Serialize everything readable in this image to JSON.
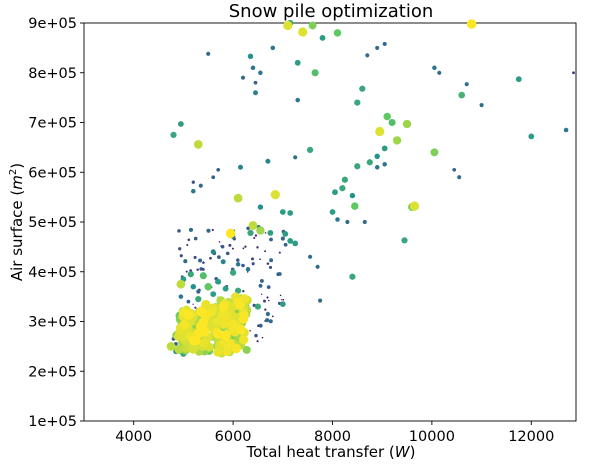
{
  "chart_data": {
    "type": "scatter",
    "title": "Snow pile optimization",
    "xlabel": "Total heat transfer",
    "xlabel_unit": "W",
    "ylabel": "Air surface",
    "ylabel_unit": "m",
    "ylabel_unit_sup": "2",
    "xlim": [
      3000,
      12900
    ],
    "ylim": [
      100000,
      900000
    ],
    "x_ticks": [
      {
        "value": 4000,
        "label": "4000"
      },
      {
        "value": 6000,
        "label": "6000"
      },
      {
        "value": 8000,
        "label": "8000"
      },
      {
        "value": 10000,
        "label": "10000"
      },
      {
        "value": 12000,
        "label": "12000"
      }
    ],
    "y_ticks": [
      {
        "value": 100000,
        "label": "1e+05"
      },
      {
        "value": 200000,
        "label": "2e+05"
      },
      {
        "value": 300000,
        "label": "3e+05"
      },
      {
        "value": 400000,
        "label": "4e+05"
      },
      {
        "value": 500000,
        "label": "5e+05"
      },
      {
        "value": 600000,
        "label": "6e+05"
      },
      {
        "value": 700000,
        "label": "7e+05"
      },
      {
        "value": 800000,
        "label": "8e+05"
      },
      {
        "value": 900000,
        "label": "9e+05"
      }
    ],
    "grid": false,
    "colormap": "viridis",
    "color_stops": [
      "#440154",
      "#3b528b",
      "#21918c",
      "#5ec962",
      "#fde725"
    ],
    "notes": "Each point: [x, y, c] where c in 0..1 sets both colour (viridis) and marker size.",
    "points": [
      [
        7100,
        895000,
        0.95
      ],
      [
        7400,
        882000,
        0.95
      ],
      [
        7600,
        895000,
        0.8
      ],
      [
        7800,
        870000,
        0.55
      ],
      [
        8100,
        880000,
        0.75
      ],
      [
        10800,
        898000,
        1.0
      ],
      [
        7150,
        900000,
        0.6
      ],
      [
        6800,
        850000,
        0.4
      ],
      [
        6350,
        833000,
        0.5
      ],
      [
        5500,
        838000,
        0.35
      ],
      [
        6400,
        810000,
        0.4
      ],
      [
        6550,
        800000,
        0.4
      ],
      [
        6200,
        790000,
        0.35
      ],
      [
        6450,
        780000,
        0.3
      ],
      [
        7650,
        800000,
        0.7
      ],
      [
        7300,
        820000,
        0.55
      ],
      [
        6450,
        760000,
        0.45
      ],
      [
        8900,
        850000,
        0.35
      ],
      [
        9050,
        858000,
        0.35
      ],
      [
        8700,
        835000,
        0.35
      ],
      [
        10050,
        810000,
        0.4
      ],
      [
        10150,
        800000,
        0.35
      ],
      [
        10700,
        777000,
        0.35
      ],
      [
        11750,
        787000,
        0.55
      ],
      [
        12850,
        800000,
        0.2
      ],
      [
        11000,
        735000,
        0.35
      ],
      [
        10600,
        755000,
        0.65
      ],
      [
        7300,
        745000,
        0.4
      ],
      [
        4800,
        675000,
        0.6
      ],
      [
        4950,
        697000,
        0.55
      ],
      [
        5300,
        656000,
        0.9
      ],
      [
        8500,
        740000,
        0.6
      ],
      [
        8600,
        768000,
        0.6
      ],
      [
        9100,
        712000,
        0.75
      ],
      [
        9200,
        700000,
        0.7
      ],
      [
        9500,
        697000,
        0.85
      ],
      [
        8950,
        682000,
        0.95
      ],
      [
        9300,
        664000,
        0.85
      ],
      [
        9050,
        648000,
        0.55
      ],
      [
        8900,
        632000,
        0.5
      ],
      [
        8500,
        612000,
        0.6
      ],
      [
        8750,
        620000,
        0.6
      ],
      [
        7550,
        645000,
        0.6
      ],
      [
        7250,
        630000,
        0.35
      ],
      [
        6700,
        622000,
        0.45
      ],
      [
        6150,
        610000,
        0.45
      ],
      [
        5600,
        590000,
        0.3
      ],
      [
        5700,
        605000,
        0.3
      ],
      [
        5200,
        580000,
        0.25
      ],
      [
        5350,
        573000,
        0.35
      ],
      [
        5200,
        562000,
        0.4
      ],
      [
        8250,
        585000,
        0.6
      ],
      [
        8200,
        568000,
        0.6
      ],
      [
        8050,
        560000,
        0.55
      ],
      [
        8400,
        553000,
        0.5
      ],
      [
        8900,
        610000,
        0.4
      ],
      [
        9050,
        616000,
        0.4
      ],
      [
        10050,
        640000,
        0.8
      ],
      [
        10450,
        605000,
        0.3
      ],
      [
        10550,
        590000,
        0.35
      ],
      [
        12000,
        672000,
        0.55
      ],
      [
        12700,
        685000,
        0.4
      ],
      [
        6850,
        555000,
        0.95
      ],
      [
        6100,
        548000,
        0.9
      ],
      [
        6550,
        530000,
        0.5
      ],
      [
        7000,
        520000,
        0.55
      ],
      [
        7150,
        518000,
        0.55
      ],
      [
        8000,
        520000,
        0.55
      ],
      [
        8450,
        532000,
        0.75
      ],
      [
        9600,
        530000,
        0.8
      ],
      [
        9650,
        532000,
        0.95
      ],
      [
        8300,
        500000,
        0.35
      ],
      [
        8650,
        500000,
        0.35
      ],
      [
        8100,
        505000,
        0.4
      ],
      [
        6400,
        493000,
        0.9
      ],
      [
        6550,
        483000,
        0.85
      ],
      [
        6350,
        478000,
        0.6
      ],
      [
        5950,
        477000,
        1.0
      ],
      [
        6000,
        470000,
        0.4
      ],
      [
        6750,
        478000,
        0.55
      ],
      [
        7150,
        462000,
        0.55
      ],
      [
        7050,
        476000,
        0.55
      ],
      [
        7250,
        457000,
        0.55
      ],
      [
        9450,
        463000,
        0.6
      ],
      [
        7550,
        430000,
        0.35
      ],
      [
        7700,
        410000,
        0.35
      ],
      [
        8400,
        390000,
        0.6
      ],
      [
        7750,
        342000,
        0.35
      ],
      [
        7000,
        335000,
        0.55
      ],
      [
        5600,
        440000,
        0.45
      ],
      [
        5800,
        420000,
        0.45
      ],
      [
        6100,
        415000,
        0.4
      ],
      [
        6300,
        405000,
        0.4
      ],
      [
        6000,
        398000,
        0.6
      ],
      [
        5000,
        385000,
        0.55
      ],
      [
        5150,
        395000,
        0.6
      ],
      [
        5400,
        392000,
        0.7
      ],
      [
        4950,
        375000,
        0.9
      ],
      [
        5700,
        380000,
        0.55
      ],
      [
        5500,
        370000,
        0.75
      ],
      [
        6100,
        362000,
        0.6
      ],
      [
        5850,
        366000,
        0.55
      ],
      [
        6300,
        343000,
        0.55
      ],
      [
        6500,
        330000,
        0.6
      ],
      [
        6700,
        315000,
        0.35
      ],
      [
        6000,
        330000,
        0.95
      ],
      [
        6200,
        318000,
        0.6
      ],
      [
        5850,
        305000,
        0.95
      ],
      [
        5000,
        320000,
        0.5
      ],
      [
        5100,
        340000,
        0.3
      ],
      [
        5300,
        345000,
        0.6
      ],
      [
        5600,
        355000,
        0.55
      ],
      [
        5200,
        310000,
        0.95
      ],
      [
        5400,
        298000,
        1.0
      ],
      [
        5600,
        287000,
        0.95
      ],
      [
        5800,
        292000,
        0.9
      ],
      [
        5100,
        285000,
        0.95
      ],
      [
        5300,
        275000,
        1.0
      ],
      [
        5500,
        268000,
        0.95
      ],
      [
        5700,
        262000,
        0.9
      ],
      [
        5900,
        270000,
        0.85
      ],
      [
        4900,
        270000,
        0.95
      ],
      [
        5050,
        258000,
        0.9
      ],
      [
        5250,
        250000,
        0.85
      ],
      [
        4750,
        250000,
        0.9
      ],
      [
        4850,
        240000,
        0.5
      ],
      [
        5000,
        235000,
        0.6
      ],
      [
        5500,
        245000,
        0.6
      ],
      [
        5750,
        250000,
        0.75
      ],
      [
        6050,
        258000,
        0.8
      ],
      [
        6150,
        290000,
        0.85
      ],
      [
        4950,
        300000,
        0.7
      ],
      [
        5350,
        320000,
        1.0
      ],
      [
        5150,
        300000,
        0.95
      ],
      [
        5450,
        285000,
        0.95
      ],
      [
        4850,
        255000,
        0.3
      ],
      [
        5050,
        275000,
        0.25
      ],
      [
        5400,
        260000,
        0.2
      ],
      [
        5000,
        290000,
        0.4
      ],
      [
        4800,
        265000,
        0.3
      ],
      [
        5600,
        310000,
        0.2
      ],
      [
        5900,
        340000,
        0.2
      ],
      [
        5450,
        330000,
        0.4
      ],
      [
        4900,
        310000,
        0.35
      ],
      [
        5300,
        360000,
        0.35
      ],
      [
        4950,
        350000,
        0.4
      ],
      [
        5200,
        370000,
        0.5
      ],
      [
        5600,
        300000,
        0.95
      ],
      [
        5700,
        275000,
        1.0
      ],
      [
        5200,
        262000,
        1.0
      ],
      [
        5350,
        290000,
        1.0
      ],
      [
        5500,
        310000,
        0.95
      ]
    ]
  }
}
